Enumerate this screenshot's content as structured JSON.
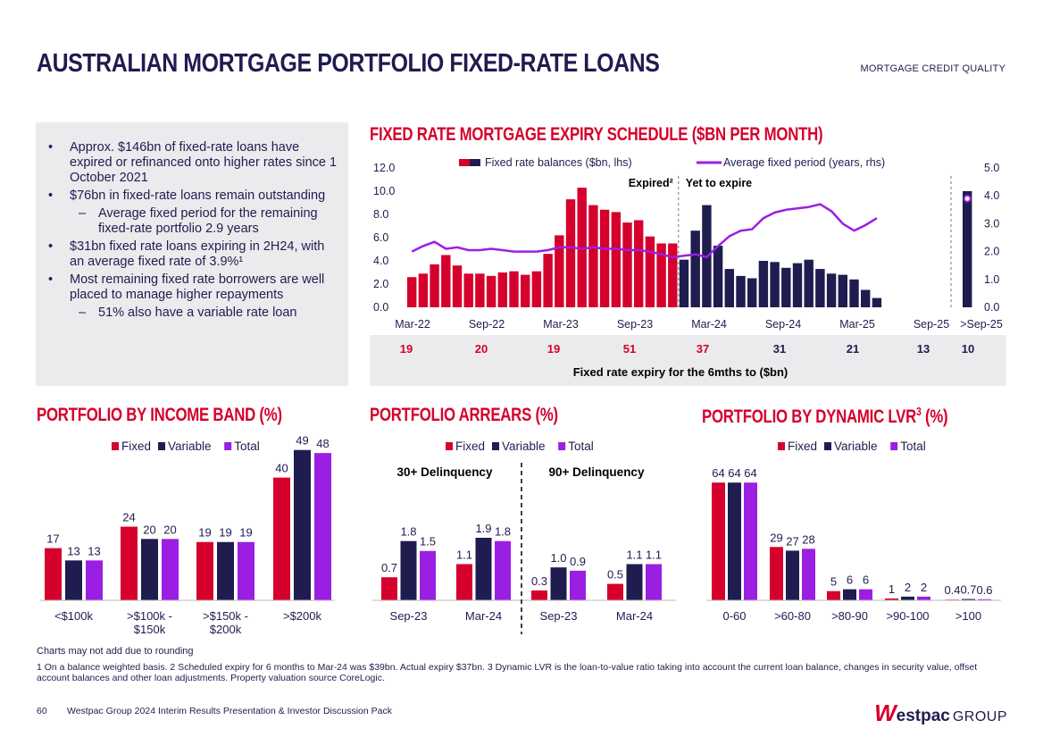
{
  "page": {
    "title": "AUSTRALIAN MORTGAGE PORTFOLIO FIXED-RATE LOANS",
    "section_tag": "MORTGAGE CREDIT QUALITY",
    "note_rounding": "Charts may not add due to rounding",
    "footnote": "1 On a balance weighted basis. 2 Scheduled expiry for 6 months to Mar-24 was $39bn. Actual expiry $37bn. 3 Dynamic LVR is the loan-to-value ratio taking into account the current loan balance, changes in security value, offset account balances and other loan adjustments. Property valuation source CoreLogic.",
    "page_number": "60",
    "footer_text": "Westpac Group 2024 Interim Results Presentation & Investor Discussion Pack",
    "logo": {
      "mark": "W",
      "name": "estpac",
      "group": "GROUP"
    },
    "colors": {
      "red": "#d5002b",
      "navy": "#1f1c4f",
      "purple": "#9b1fe3",
      "grey_panel": "#ebebee"
    }
  },
  "summary": {
    "bullets": [
      {
        "level": 1,
        "text": "Approx.  $146bn of fixed-rate loans have expired or refinanced onto higher rates since 1 October 2021"
      },
      {
        "level": 1,
        "text": "$76bn in fixed-rate loans remain outstanding"
      },
      {
        "level": 2,
        "text": "Average fixed period for the remaining fixed-rate portfolio 2.9 years"
      },
      {
        "level": 1,
        "text": "$31bn fixed rate loans expiring in 2H24, with an average fixed rate of 3.9%¹"
      },
      {
        "level": 1,
        "text": "Most remaining fixed rate borrowers are well placed to manage higher repayments"
      },
      {
        "level": 2,
        "text": "51% also have a variable rate loan"
      }
    ]
  },
  "chart_data": [
    {
      "id": "expiry",
      "type": "bar",
      "title": "FIXED RATE MORTGAGE EXPIRY SCHEDULE ($BN PER MONTH)",
      "legend": [
        "Fixed rate balances ($bn, lhs)",
        "Average fixed period (years, rhs)"
      ],
      "ylim": [
        0,
        12
      ],
      "yticks": [
        "0.0",
        "2.0",
        "4.0",
        "6.0",
        "8.0",
        "10.0",
        "12.0"
      ],
      "y2lim": [
        0,
        5
      ],
      "y2ticks": [
        "0.0",
        "1.0",
        "2.0",
        "3.0",
        "4.0",
        "5.0"
      ],
      "xticks": [
        "Mar-22",
        "Sep-22",
        "Mar-23",
        "Sep-23",
        "Mar-24",
        "Sep-24",
        "Mar-25",
        "Sep-25",
        ">Sep-25"
      ],
      "annotations": [
        "Expired²",
        "Yet to expire"
      ],
      "expired_values": [
        2.6,
        2.9,
        3.7,
        4.5,
        3.6,
        2.9,
        2.9,
        2.7,
        3.0,
        3.1,
        2.8,
        3.1,
        4.6,
        6.2,
        9.3,
        10.3,
        8.8,
        8.4,
        8.2,
        7.3,
        7.5,
        6.1,
        5.5,
        5.5
      ],
      "future_values": [
        4.1,
        6.6,
        8.8,
        5.3,
        3.3,
        2.7,
        2.5,
        4.0,
        3.9,
        3.4,
        3.8,
        4.1,
        3.3,
        2.9,
        2.8,
        2.4,
        1.5,
        0.8
      ],
      "beyond_value": 10.0,
      "avg_period": [
        2.0,
        2.2,
        2.35,
        2.1,
        2.15,
        2.05,
        2.05,
        2.1,
        2.05,
        2.0,
        2.0,
        2.0,
        2.05,
        2.15,
        2.15,
        2.1,
        2.15,
        2.1,
        2.1,
        2.05,
        2.05,
        2.0,
        1.9,
        1.8,
        1.85,
        1.9,
        1.8,
        2.2,
        2.55,
        2.75,
        2.8,
        3.2,
        3.4,
        3.5,
        3.55,
        3.6,
        3.7,
        3.45,
        3.0,
        2.75,
        2.95,
        3.2
      ],
      "avg_period_beyond": 3.9,
      "expiry_6m": {
        "values": [
          "19",
          "20",
          "19",
          "51",
          "37",
          "31",
          "21",
          "13",
          "10"
        ],
        "caption": "Fixed rate expiry for the 6mths to ($bn)"
      }
    },
    {
      "id": "income",
      "type": "bar",
      "title": "PORTFOLIO BY INCOME BAND (%)",
      "legend": [
        "Fixed",
        "Variable",
        "Total"
      ],
      "categories": [
        "<$100k",
        ">$100k - $150k",
        ">$150k - $200k",
        ">$200k"
      ],
      "series": [
        {
          "name": "Fixed",
          "values": [
            17,
            24,
            19,
            40
          ]
        },
        {
          "name": "Variable",
          "values": [
            13,
            20,
            19,
            49
          ]
        },
        {
          "name": "Total",
          "values": [
            13,
            20,
            19,
            48
          ]
        }
      ],
      "ylim": [
        0,
        52
      ]
    },
    {
      "id": "arrears",
      "type": "bar",
      "title": "PORTFOLIO ARREARS (%)",
      "legend": [
        "Fixed",
        "Variable",
        "Total"
      ],
      "groups": [
        "30+ Delinquency",
        "90+ Delinquency"
      ],
      "categories": [
        "Sep-23",
        "Mar-24",
        "Sep-23",
        "Mar-24"
      ],
      "series": [
        {
          "name": "Fixed",
          "values": [
            "0.7",
            "1.1",
            "0.3",
            "0.5"
          ]
        },
        {
          "name": "Variable",
          "values": [
            "1.8",
            "1.9",
            "1.0",
            "1.1"
          ]
        },
        {
          "name": "Total",
          "values": [
            "1.5",
            "1.8",
            "0.9",
            "1.1"
          ]
        }
      ],
      "ylim": [
        0,
        3.8
      ]
    },
    {
      "id": "lvr",
      "type": "bar",
      "title": "PORTFOLIO BY DYNAMIC LVR",
      "title_sup": "3",
      "title_tail": " (%)",
      "legend": [
        "Fixed",
        "Variable",
        "Total"
      ],
      "categories": [
        "0-60",
        ">60-80",
        ">80-90",
        ">90-100",
        ">100"
      ],
      "series": [
        {
          "name": "Fixed",
          "values": [
            "64",
            "29",
            "5",
            "1",
            "0.4"
          ]
        },
        {
          "name": "Variable",
          "values": [
            "64",
            "27",
            "6",
            "2",
            "0.7"
          ]
        },
        {
          "name": "Total",
          "values": [
            "64",
            "28",
            "6",
            "2",
            "0.6"
          ]
        }
      ],
      "ylim": [
        0,
        68
      ]
    }
  ]
}
